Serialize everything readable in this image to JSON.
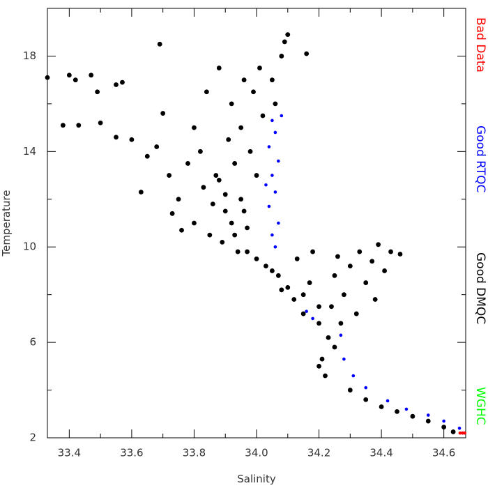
{
  "chart_data": {
    "type": "scatter",
    "x_label": "Salinity",
    "y_label": "Temperature",
    "xlim": [
      33.33,
      34.67
    ],
    "ylim": [
      2,
      20
    ],
    "xticks": [
      33.4,
      33.6,
      33.8,
      {
        "value": 34,
        "label": "34.0"
      },
      34.2,
      34.4,
      34.6
    ],
    "x_minor_ticks": [
      33.5,
      33.7,
      33.9,
      34.1,
      34.3,
      34.5
    ],
    "yticks": [
      2,
      6,
      10,
      14,
      18
    ],
    "y_minor_ticks": [
      4,
      8,
      12,
      16
    ],
    "legend_position": "right",
    "series": [
      {
        "name": "Bad Data",
        "color": "#ff0000",
        "x": [
          34.652,
          34.66,
          34.667
        ],
        "values": [
          2.2,
          2.2,
          2.2
        ]
      },
      {
        "name": "Good RTQC",
        "color": "#0000ff",
        "x": [
          34.05,
          34.06,
          34.04,
          34.07,
          34.05,
          34.06,
          34.04,
          34.07,
          34.05,
          34.06,
          34.08,
          34.03,
          34.27,
          34.28,
          34.31,
          34.35,
          34.42,
          34.48,
          34.55,
          34.6,
          34.65,
          34.66,
          34.18,
          34.16
        ],
        "values": [
          15.3,
          14.8,
          14.2,
          13.6,
          13.0,
          12.3,
          11.7,
          11.0,
          10.5,
          10.0,
          15.5,
          12.6,
          6.3,
          5.3,
          4.6,
          4.1,
          3.55,
          3.2,
          2.95,
          2.7,
          2.4,
          2.2,
          7.0,
          7.3
        ]
      },
      {
        "name": "Good DMQC",
        "color": "#000000",
        "x": [
          33.33,
          33.4,
          33.47,
          33.42,
          33.38,
          33.43,
          33.5,
          33.55,
          33.57,
          33.49,
          33.55,
          33.6,
          33.63,
          33.69,
          34.16,
          33.65,
          33.68,
          33.7,
          33.72,
          33.73,
          33.75,
          33.76,
          33.78,
          33.8,
          33.8,
          33.82,
          33.83,
          33.84,
          33.85,
          33.86,
          33.87,
          33.88,
          33.89,
          33.9,
          33.91,
          33.92,
          33.92,
          33.93,
          33.94,
          33.95,
          33.95,
          33.96,
          33.97,
          33.98,
          33.99,
          34.0,
          34.0,
          34.01,
          34.02,
          34.03,
          34.05,
          34.06,
          34.07,
          34.08,
          34.09,
          34.1,
          34.1,
          34.12,
          34.13,
          34.15,
          34.17,
          34.18,
          34.2,
          34.21,
          34.2,
          34.22,
          34.23,
          34.24,
          34.25,
          34.26,
          34.27,
          34.28,
          34.3,
          34.3,
          34.32,
          34.33,
          34.35,
          34.35,
          34.37,
          34.38,
          34.39,
          34.4,
          34.41,
          34.43,
          34.45,
          34.46,
          34.5,
          34.55,
          34.6,
          34.63,
          33.9,
          33.93,
          33.97,
          34.05,
          34.15,
          34.25,
          33.88,
          33.96,
          34.08,
          34.2
        ],
        "values": [
          17.1,
          17.2,
          17.2,
          17.0,
          15.1,
          15.1,
          15.2,
          16.8,
          16.9,
          16.5,
          14.6,
          14.5,
          12.3,
          18.5,
          18.1,
          13.8,
          14.2,
          15.6,
          13.0,
          11.4,
          12.0,
          10.7,
          13.5,
          15.0,
          11.0,
          14.0,
          12.5,
          16.5,
          10.5,
          11.8,
          13.0,
          17.5,
          10.2,
          12.2,
          14.5,
          11.0,
          16.0,
          13.5,
          9.8,
          12.0,
          15.0,
          17.0,
          10.8,
          14.0,
          16.5,
          9.5,
          13.0,
          17.5,
          15.5,
          9.2,
          17.0,
          16.0,
          8.8,
          18.0,
          18.6,
          18.9,
          8.3,
          7.8,
          9.5,
          7.2,
          8.5,
          9.8,
          6.8,
          5.3,
          5.0,
          4.6,
          6.2,
          7.5,
          8.8,
          9.6,
          6.8,
          8.0,
          9.2,
          4.0,
          7.2,
          9.8,
          8.5,
          3.6,
          9.4,
          7.8,
          10.1,
          3.3,
          9.0,
          9.8,
          3.1,
          9.7,
          2.9,
          2.7,
          2.45,
          2.25,
          11.5,
          10.5,
          9.8,
          9.0,
          8.0,
          5.8,
          12.8,
          11.5,
          8.2,
          7.5
        ]
      },
      {
        "name": "WGHC",
        "color": "#00ff00",
        "x": [],
        "values": []
      }
    ]
  }
}
